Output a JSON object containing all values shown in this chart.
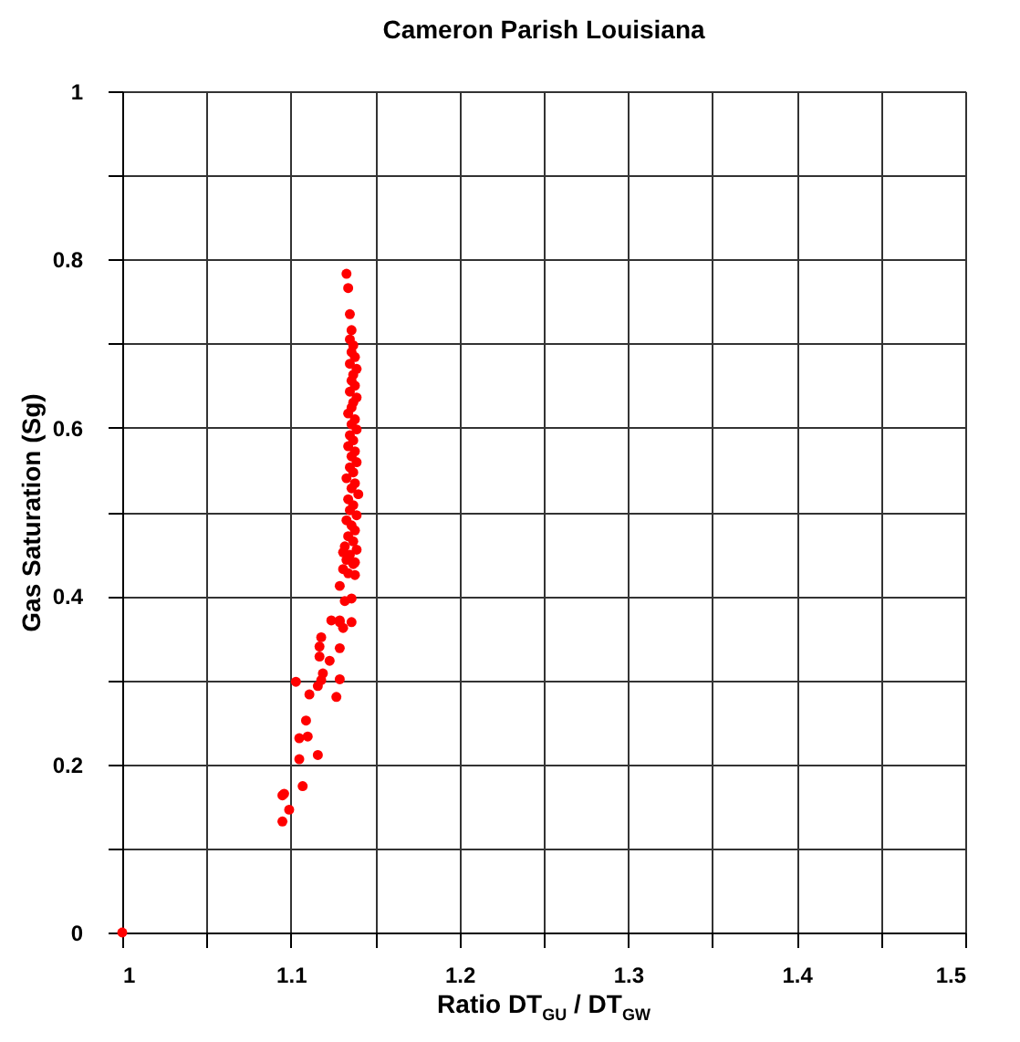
{
  "chart_data": {
    "type": "scatter",
    "title": "Cameron Parish Louisiana",
    "xlabel": "Ratio DT$_{GU}$ / DT$_{GW}$",
    "ylabel": "Gas Saturation (Sg)",
    "x": [
      1.0,
      1.133,
      1.134,
      1.135,
      1.136,
      1.135,
      1.137,
      1.136,
      1.138,
      1.135,
      1.139,
      1.137,
      1.136,
      1.138,
      1.135,
      1.139,
      1.137,
      1.136,
      1.134,
      1.138,
      1.136,
      1.139,
      1.135,
      1.137,
      1.134,
      1.138,
      1.136,
      1.139,
      1.135,
      1.137,
      1.133,
      1.138,
      1.136,
      1.14,
      1.134,
      1.137,
      1.135,
      1.139,
      1.133,
      1.136,
      1.138,
      1.134,
      1.137,
      1.132,
      1.139,
      1.135,
      1.133,
      1.137,
      1.131,
      1.138,
      1.131,
      1.134,
      1.138,
      1.129,
      1.136,
      1.132,
      1.129,
      1.136,
      1.124,
      1.129,
      1.131,
      1.118,
      1.129,
      1.117,
      1.117,
      1.123,
      1.119,
      1.103,
      1.118,
      1.116,
      1.129,
      1.111,
      1.127,
      1.109,
      1.105,
      1.11,
      1.116,
      1.105,
      1.107,
      1.096,
      1.095,
      1.099,
      1.095
    ],
    "values": [
      0.0,
      0.783,
      0.766,
      0.735,
      0.716,
      0.705,
      0.698,
      0.69,
      0.684,
      0.676,
      0.67,
      0.663,
      0.656,
      0.65,
      0.643,
      0.636,
      0.63,
      0.624,
      0.617,
      0.61,
      0.604,
      0.598,
      0.591,
      0.585,
      0.578,
      0.572,
      0.566,
      0.559,
      0.553,
      0.547,
      0.54,
      0.534,
      0.528,
      0.521,
      0.515,
      0.508,
      0.502,
      0.496,
      0.49,
      0.484,
      0.478,
      0.471,
      0.465,
      0.459,
      0.455,
      0.449,
      0.443,
      0.438,
      0.452,
      0.44,
      0.432,
      0.427,
      0.425,
      0.412,
      0.397,
      0.394,
      0.371,
      0.369,
      0.371,
      0.369,
      0.362,
      0.351,
      0.338,
      0.34,
      0.328,
      0.323,
      0.308,
      0.298,
      0.3,
      0.293,
      0.301,
      0.283,
      0.28,
      0.252,
      0.231,
      0.233,
      0.211,
      0.206,
      0.174,
      0.165,
      0.163,
      0.146,
      0.132
    ],
    "color": "#ff0000",
    "marker": "circle",
    "xlim": [
      1,
      1.5
    ],
    "ylim": [
      0,
      1
    ],
    "xticks": [
      1,
      {
        "value": 1.05,
        "label": null
      },
      1.1,
      {
        "value": 1.15,
        "label": null
      },
      1.2,
      {
        "value": 1.25,
        "label": null
      },
      1.3,
      {
        "value": 1.35,
        "label": null
      },
      1.4,
      {
        "value": 1.45,
        "label": null
      },
      1.5
    ],
    "yticks": [
      0,
      {
        "value": 0.1,
        "label": null
      },
      0.2,
      {
        "value": 0.3,
        "label": null
      },
      0.4,
      {
        "value": 0.5,
        "label": null
      },
      0.6,
      {
        "value": 0.7,
        "label": null
      },
      0.8,
      {
        "value": 0.9,
        "label": null
      },
      1
    ],
    "grid": true
  }
}
